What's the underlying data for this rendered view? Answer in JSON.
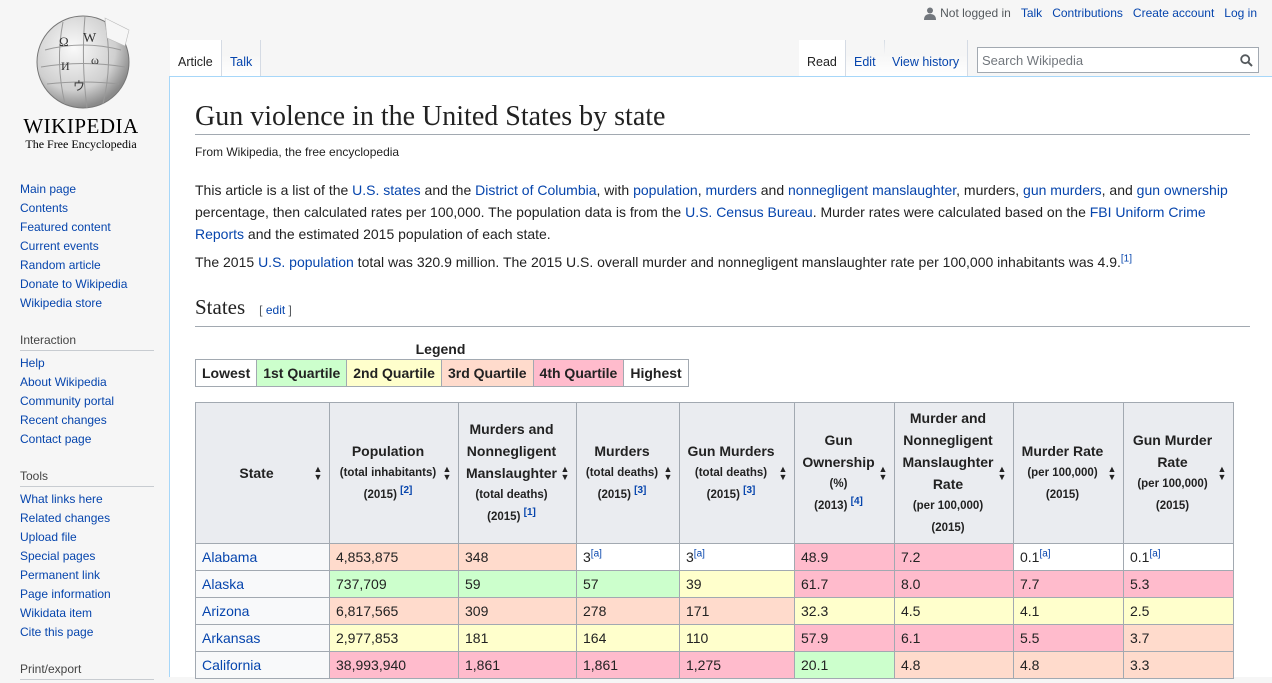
{
  "logo": {
    "wordmark": "WIKIPEDIA",
    "tagline": "The Free Encyclopedia"
  },
  "personal": {
    "not_logged_in": "Not logged in",
    "talk": "Talk",
    "contributions": "Contributions",
    "create_account": "Create account",
    "log_in": "Log in"
  },
  "tabs": {
    "article": "Article",
    "talk": "Talk",
    "read": "Read",
    "edit": "Edit",
    "view_history": "View history"
  },
  "search": {
    "placeholder": "Search Wikipedia"
  },
  "sidebar": {
    "nav": [
      "Main page",
      "Contents",
      "Featured content",
      "Current events",
      "Random article",
      "Donate to Wikipedia",
      "Wikipedia store"
    ],
    "interaction_heading": "Interaction",
    "interaction": [
      "Help",
      "About Wikipedia",
      "Community portal",
      "Recent changes",
      "Contact page"
    ],
    "tools_heading": "Tools",
    "tools": [
      "What links here",
      "Related changes",
      "Upload file",
      "Special pages",
      "Permanent link",
      "Page information",
      "Wikidata item",
      "Cite this page"
    ],
    "print_heading": "Print/export"
  },
  "article": {
    "title": "Gun violence in the United States by state",
    "site_sub": "From Wikipedia, the free encyclopedia",
    "p1": {
      "t1": "This article is a list of the ",
      "l1": "U.S. states",
      "t2": " and the ",
      "l2": "District of Columbia",
      "t3": ", with ",
      "l3": "population",
      "t4": ", ",
      "l4": "murders",
      "t5": " and ",
      "l5": "nonnegligent manslaughter",
      "t6": ", murders, ",
      "l6": "gun murders",
      "t7": ", and ",
      "l7": "gun ownership",
      "t8": " percentage, then calculated rates per 100,000. The population data is from the ",
      "l8": "U.S. Census Bureau",
      "t9": ". Murder rates were calculated based on the ",
      "l9": "FBI Uniform Crime Reports",
      "t10": " and the estimated 2015 population of each state."
    },
    "p2": {
      "t1": "The 2015 ",
      "l1": "U.S. population",
      "t2": " total was 320.9 million. The 2015 U.S. overall murder and nonnegligent manslaughter rate per 100,000 inhabitants was 4.9.",
      "ref": "[1]"
    },
    "section_title": "States",
    "edit_open": "[ ",
    "edit_link": "edit",
    "edit_close": " ]"
  },
  "legend": {
    "title": "Legend",
    "items": [
      "Lowest",
      "1st Quartile",
      "2nd Quartile",
      "3rd Quartile",
      "4th Quartile",
      "Highest"
    ]
  },
  "table": {
    "headers": {
      "state": "State",
      "population": "Population",
      "population_sub": "(total inhabitants)",
      "population_year": "(2015)",
      "population_ref": "[2]",
      "mnm": "Murders and Nonnegligent Manslaughter",
      "mnm_sub": "(total deaths)",
      "mnm_year": "(2015)",
      "mnm_ref": "[1]",
      "murders": "Murders",
      "murders_sub": "(total deaths)",
      "murders_year": "(2015)",
      "murders_ref": "[3]",
      "gun_murders": "Gun Murders",
      "gun_murders_sub": "(total deaths)",
      "gun_murders_year": "(2015)",
      "gun_murders_ref": "[3]",
      "ownership": "Gun Ownership",
      "ownership_sub": "(%)",
      "ownership_year": "(2013)",
      "ownership_ref": "[4]",
      "mnm_rate": "Murder and Nonnegligent Manslaughter Rate",
      "mnm_rate_sub": "(per 100,000)",
      "mnm_rate_year": "(2015)",
      "murder_rate": "Murder Rate",
      "murder_rate_sub": "(per 100,000)",
      "murder_rate_year": "(2015)",
      "gun_murder_rate": "Gun Murder Rate",
      "gun_murder_rate_sub": "(per 100,000)",
      "gun_murder_rate_year": "(2015)"
    },
    "rows": [
      {
        "state": "Alabama",
        "population": "4,853,875",
        "mnm": "348",
        "murders": "3",
        "murders_ref": "[a]",
        "gun_murders": "3",
        "gun_murders_ref": "[a]",
        "ownership": "48.9",
        "mnm_rate": "7.2",
        "murder_rate": "0.1",
        "murder_rate_ref": "[a]",
        "gun_murder_rate": "0.1",
        "gun_murder_rate_ref": "[a]"
      },
      {
        "state": "Alaska",
        "population": "737,709",
        "mnm": "59",
        "murders": "57",
        "gun_murders": "39",
        "ownership": "61.7",
        "mnm_rate": "8.0",
        "murder_rate": "7.7",
        "gun_murder_rate": "5.3"
      },
      {
        "state": "Arizona",
        "population": "6,817,565",
        "mnm": "309",
        "murders": "278",
        "gun_murders": "171",
        "ownership": "32.3",
        "mnm_rate": "4.5",
        "murder_rate": "4.1",
        "gun_murder_rate": "2.5"
      },
      {
        "state": "Arkansas",
        "population": "2,977,853",
        "mnm": "181",
        "murders": "164",
        "gun_murders": "110",
        "ownership": "57.9",
        "mnm_rate": "6.1",
        "murder_rate": "5.5",
        "gun_murder_rate": "3.7"
      },
      {
        "state": "California",
        "population": "38,993,940",
        "mnm": "1,861",
        "murders": "1,861",
        "gun_murders": "1,275",
        "ownership": "20.1",
        "mnm_rate": "4.8",
        "murder_rate": "4.8",
        "gun_murder_rate": "3.3"
      }
    ]
  },
  "colors": {
    "link": "#0645ad",
    "lowest": "#ffffff",
    "q1": "#ccffcc",
    "q2": "#ffffcc",
    "q3": "#ffdbcc",
    "q4": "#ffbbcc",
    "highest": "#ffffff",
    "header_bg": "#eaecf0"
  },
  "icons": {
    "logo": "wikipedia-globe-icon",
    "user": "user-icon",
    "search": "search-icon",
    "sort": "sort-icon"
  }
}
